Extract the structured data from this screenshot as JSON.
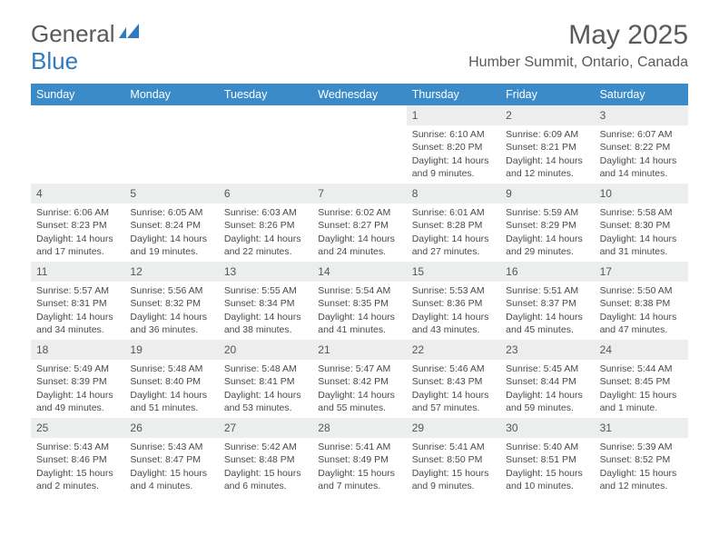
{
  "brand": {
    "text1": "General",
    "text2": "Blue"
  },
  "title": "May 2025",
  "location": "Humber Summit, Ontario, Canada",
  "colors": {
    "header_bg": "#3b8bc9",
    "daynum_bg": "#eceded",
    "text": "#4a4a4a",
    "title": "#5a5a5a"
  },
  "weekdays": [
    "Sunday",
    "Monday",
    "Tuesday",
    "Wednesday",
    "Thursday",
    "Friday",
    "Saturday"
  ],
  "weeks": [
    [
      {
        "empty": true
      },
      {
        "empty": true
      },
      {
        "empty": true
      },
      {
        "empty": true
      },
      {
        "n": "1",
        "sunrise": "6:10 AM",
        "sunset": "8:20 PM",
        "daylight": "14 hours and 9 minutes."
      },
      {
        "n": "2",
        "sunrise": "6:09 AM",
        "sunset": "8:21 PM",
        "daylight": "14 hours and 12 minutes."
      },
      {
        "n": "3",
        "sunrise": "6:07 AM",
        "sunset": "8:22 PM",
        "daylight": "14 hours and 14 minutes."
      }
    ],
    [
      {
        "n": "4",
        "sunrise": "6:06 AM",
        "sunset": "8:23 PM",
        "daylight": "14 hours and 17 minutes."
      },
      {
        "n": "5",
        "sunrise": "6:05 AM",
        "sunset": "8:24 PM",
        "daylight": "14 hours and 19 minutes."
      },
      {
        "n": "6",
        "sunrise": "6:03 AM",
        "sunset": "8:26 PM",
        "daylight": "14 hours and 22 minutes."
      },
      {
        "n": "7",
        "sunrise": "6:02 AM",
        "sunset": "8:27 PM",
        "daylight": "14 hours and 24 minutes."
      },
      {
        "n": "8",
        "sunrise": "6:01 AM",
        "sunset": "8:28 PM",
        "daylight": "14 hours and 27 minutes."
      },
      {
        "n": "9",
        "sunrise": "5:59 AM",
        "sunset": "8:29 PM",
        "daylight": "14 hours and 29 minutes."
      },
      {
        "n": "10",
        "sunrise": "5:58 AM",
        "sunset": "8:30 PM",
        "daylight": "14 hours and 31 minutes."
      }
    ],
    [
      {
        "n": "11",
        "sunrise": "5:57 AM",
        "sunset": "8:31 PM",
        "daylight": "14 hours and 34 minutes."
      },
      {
        "n": "12",
        "sunrise": "5:56 AM",
        "sunset": "8:32 PM",
        "daylight": "14 hours and 36 minutes."
      },
      {
        "n": "13",
        "sunrise": "5:55 AM",
        "sunset": "8:34 PM",
        "daylight": "14 hours and 38 minutes."
      },
      {
        "n": "14",
        "sunrise": "5:54 AM",
        "sunset": "8:35 PM",
        "daylight": "14 hours and 41 minutes."
      },
      {
        "n": "15",
        "sunrise": "5:53 AM",
        "sunset": "8:36 PM",
        "daylight": "14 hours and 43 minutes."
      },
      {
        "n": "16",
        "sunrise": "5:51 AM",
        "sunset": "8:37 PM",
        "daylight": "14 hours and 45 minutes."
      },
      {
        "n": "17",
        "sunrise": "5:50 AM",
        "sunset": "8:38 PM",
        "daylight": "14 hours and 47 minutes."
      }
    ],
    [
      {
        "n": "18",
        "sunrise": "5:49 AM",
        "sunset": "8:39 PM",
        "daylight": "14 hours and 49 minutes."
      },
      {
        "n": "19",
        "sunrise": "5:48 AM",
        "sunset": "8:40 PM",
        "daylight": "14 hours and 51 minutes."
      },
      {
        "n": "20",
        "sunrise": "5:48 AM",
        "sunset": "8:41 PM",
        "daylight": "14 hours and 53 minutes."
      },
      {
        "n": "21",
        "sunrise": "5:47 AM",
        "sunset": "8:42 PM",
        "daylight": "14 hours and 55 minutes."
      },
      {
        "n": "22",
        "sunrise": "5:46 AM",
        "sunset": "8:43 PM",
        "daylight": "14 hours and 57 minutes."
      },
      {
        "n": "23",
        "sunrise": "5:45 AM",
        "sunset": "8:44 PM",
        "daylight": "14 hours and 59 minutes."
      },
      {
        "n": "24",
        "sunrise": "5:44 AM",
        "sunset": "8:45 PM",
        "daylight": "15 hours and 1 minute."
      }
    ],
    [
      {
        "n": "25",
        "sunrise": "5:43 AM",
        "sunset": "8:46 PM",
        "daylight": "15 hours and 2 minutes."
      },
      {
        "n": "26",
        "sunrise": "5:43 AM",
        "sunset": "8:47 PM",
        "daylight": "15 hours and 4 minutes."
      },
      {
        "n": "27",
        "sunrise": "5:42 AM",
        "sunset": "8:48 PM",
        "daylight": "15 hours and 6 minutes."
      },
      {
        "n": "28",
        "sunrise": "5:41 AM",
        "sunset": "8:49 PM",
        "daylight": "15 hours and 7 minutes."
      },
      {
        "n": "29",
        "sunrise": "5:41 AM",
        "sunset": "8:50 PM",
        "daylight": "15 hours and 9 minutes."
      },
      {
        "n": "30",
        "sunrise": "5:40 AM",
        "sunset": "8:51 PM",
        "daylight": "15 hours and 10 minutes."
      },
      {
        "n": "31",
        "sunrise": "5:39 AM",
        "sunset": "8:52 PM",
        "daylight": "15 hours and 12 minutes."
      }
    ]
  ],
  "labels": {
    "sunrise": "Sunrise: ",
    "sunset": "Sunset: ",
    "daylight": "Daylight: "
  }
}
